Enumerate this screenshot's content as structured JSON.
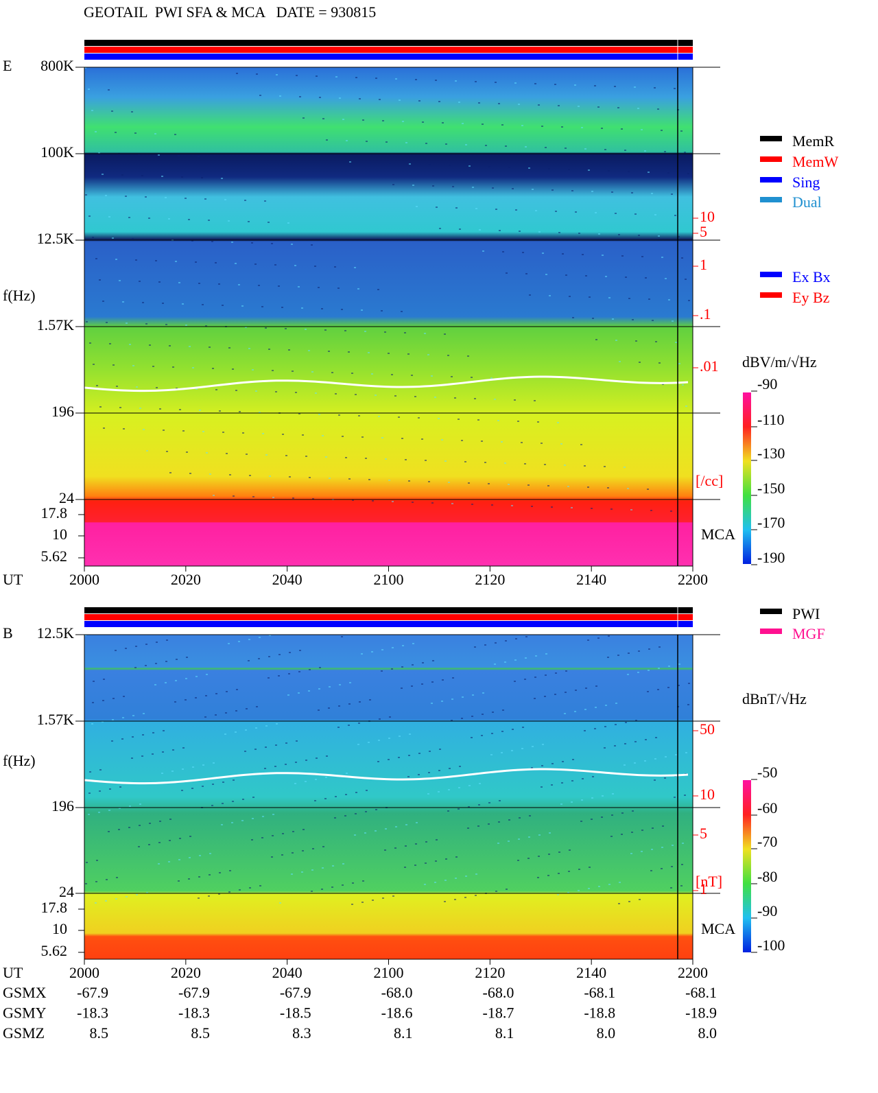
{
  "title": "GEOTAIL  PWI SFA & MCA   DATE = 930815",
  "panels": [
    {
      "label": "E",
      "y_axis_label": "f(Hz)",
      "freq_labels": [
        "800K",
        "100K",
        "12.5K",
        "1.57K",
        "196",
        "24"
      ],
      "mca_freq_labels": [
        "17.8",
        "10",
        "5.62"
      ],
      "mca_label": "MCA",
      "time_axis_label": "UT",
      "time_labels": [
        "2000",
        "2020",
        "2040",
        "2100",
        "2120",
        "2140",
        "2200"
      ],
      "right_scale": {
        "labels": [
          "10",
          "5",
          "1",
          ".1",
          ".01"
        ],
        "unit": "[/cc]"
      },
      "colorbar": {
        "unit": "dBV/m/√Hz",
        "labels": [
          "-90",
          "-110",
          "-130",
          "-150",
          "-170",
          "-190"
        ]
      }
    },
    {
      "label": "B",
      "y_axis_label": "f(Hz)",
      "freq_labels": [
        "12.5K",
        "1.57K",
        "196",
        "24"
      ],
      "mca_freq_labels": [
        "17.8",
        "10",
        "5.62"
      ],
      "mca_label": "MCA",
      "time_axis_label": "UT",
      "time_labels": [
        "2000",
        "2020",
        "2040",
        "2100",
        "2120",
        "2140",
        "2200"
      ],
      "right_scale": {
        "labels": [
          "50",
          "10",
          "5",
          "1"
        ],
        "unit": "[nT]"
      },
      "colorbar": {
        "unit": "dBnT/√Hz",
        "labels": [
          "-50",
          "-60",
          "-70",
          "-80",
          "-90",
          "-100"
        ]
      }
    }
  ],
  "legend_mode": [
    "MemR",
    "MemW",
    "Sing",
    "Dual"
  ],
  "legend_component": [
    "Ex Bx",
    "Ey Bz"
  ],
  "legend_source": [
    "PWI",
    "MGF"
  ],
  "orbit": [
    {
      "name": "GSMX",
      "values": [
        "-67.9",
        "-67.9",
        "-67.9",
        "-68.0",
        "-68.0",
        "-68.1",
        "-68.1"
      ]
    },
    {
      "name": "GSMY",
      "values": [
        "-18.3",
        "-18.3",
        "-18.5",
        "-18.6",
        "-18.7",
        "-18.8",
        "-18.9"
      ]
    },
    {
      "name": "GSMZ",
      "values": [
        "8.5",
        "8.5",
        "8.3",
        "8.1",
        "8.1",
        "8.0",
        "8.0"
      ]
    }
  ]
}
